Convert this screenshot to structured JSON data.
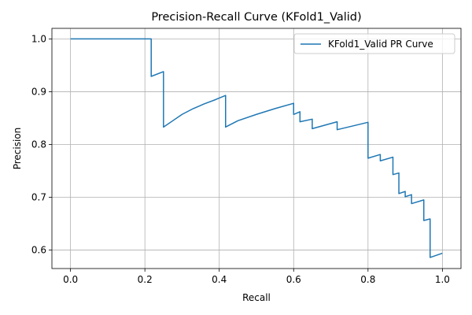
{
  "chart_data": {
    "type": "line",
    "title": "Precision-Recall Curve (KFold1_Valid)",
    "xlabel": "Recall",
    "ylabel": "Precision",
    "xlim": [
      -0.05,
      1.05
    ],
    "ylim": [
      0.565,
      1.02
    ],
    "xticks": [
      0.0,
      0.2,
      0.4,
      0.6,
      0.8,
      1.0
    ],
    "xtick_labels": [
      "0.0",
      "0.2",
      "0.4",
      "0.6",
      "0.8",
      "1.0"
    ],
    "yticks": [
      0.6,
      0.7,
      0.8,
      0.9,
      1.0
    ],
    "ytick_labels": [
      "0.6",
      "0.7",
      "0.8",
      "0.9",
      "1.0"
    ],
    "grid": true,
    "legend": {
      "position": "upper right",
      "entries": [
        "KFold1_Valid PR Curve"
      ]
    },
    "series": [
      {
        "name": "KFold1_Valid PR Curve",
        "color": "#1f77b4",
        "x": [
          0.0,
          0.217,
          0.217,
          0.25,
          0.25,
          0.275,
          0.3,
          0.33,
          0.36,
          0.39,
          0.417,
          0.417,
          0.45,
          0.5,
          0.55,
          0.6,
          0.6,
          0.617,
          0.617,
          0.65,
          0.65,
          0.717,
          0.717,
          0.8,
          0.8,
          0.833,
          0.833,
          0.867,
          0.867,
          0.883,
          0.883,
          0.9,
          0.9,
          0.917,
          0.917,
          0.95,
          0.95,
          0.967,
          0.967,
          1.0
        ],
        "y": [
          1.0,
          1.0,
          0.929,
          0.938,
          0.833,
          0.845,
          0.857,
          0.868,
          0.877,
          0.885,
          0.893,
          0.833,
          0.845,
          0.857,
          0.868,
          0.878,
          0.857,
          0.862,
          0.843,
          0.848,
          0.83,
          0.843,
          0.828,
          0.842,
          0.774,
          0.781,
          0.769,
          0.776,
          0.743,
          0.746,
          0.707,
          0.711,
          0.701,
          0.705,
          0.688,
          0.695,
          0.656,
          0.659,
          0.586,
          0.594
        ]
      }
    ]
  }
}
